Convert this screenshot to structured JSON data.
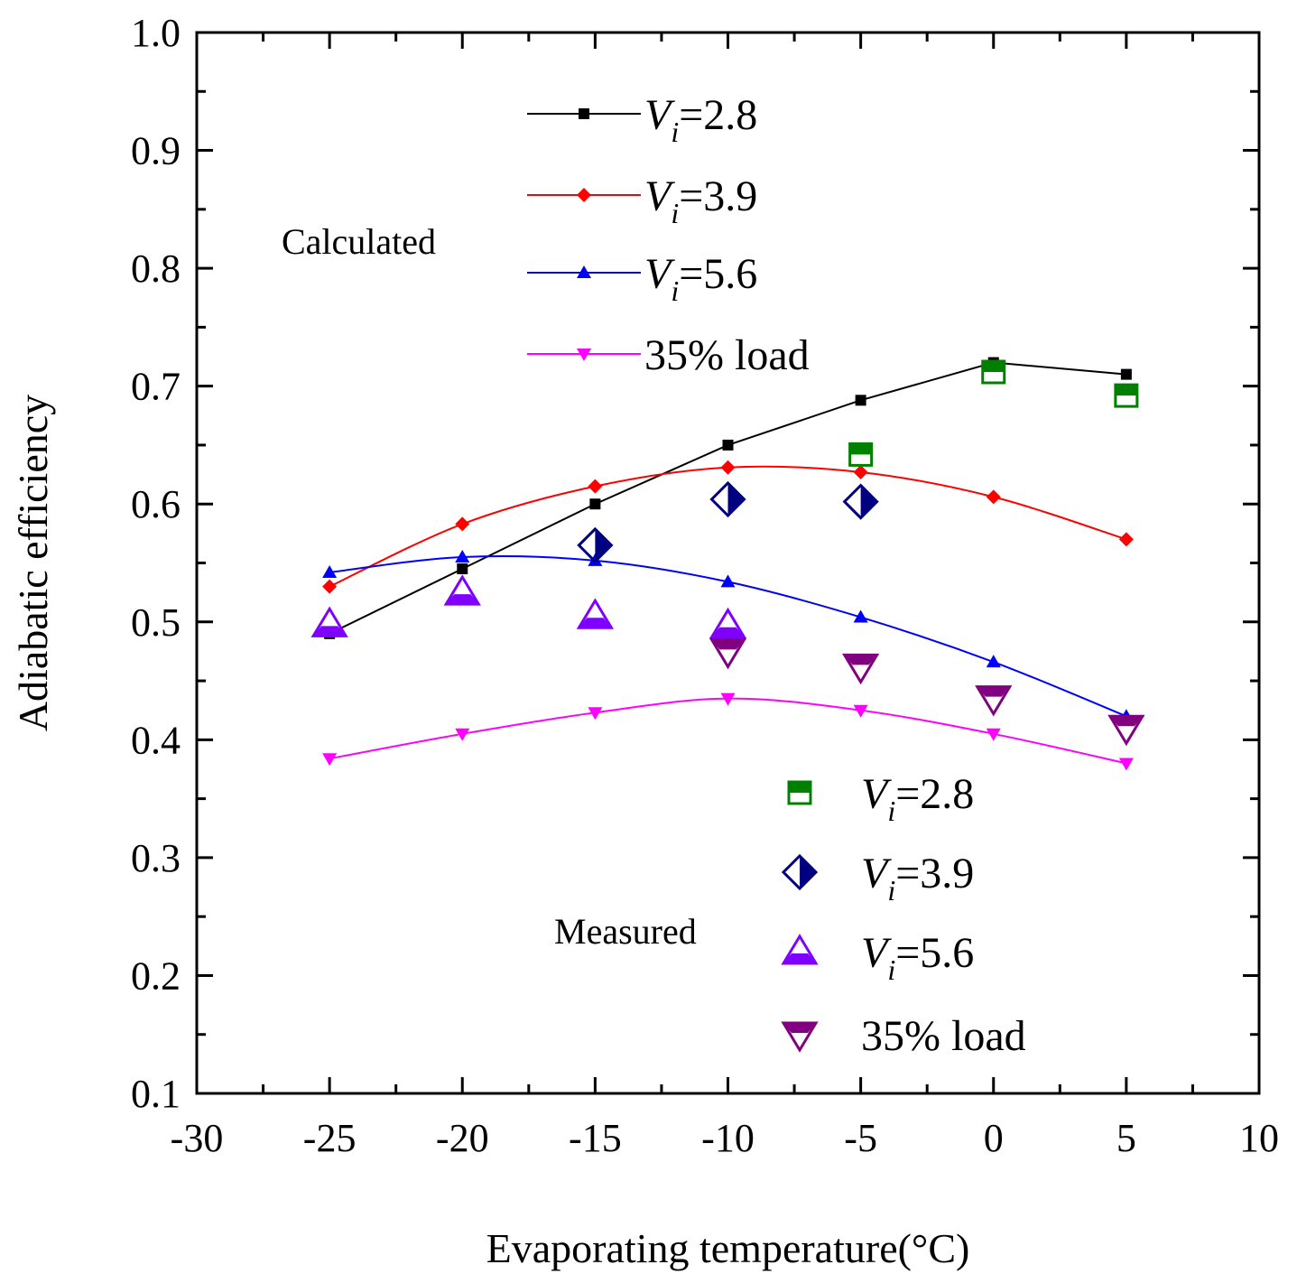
{
  "chart_data": {
    "type": "line",
    "xlabel": "Evaporating temperature(°C)",
    "ylabel": "Adiabatic efficiency",
    "xlim": [
      -30,
      10
    ],
    "ylim": [
      0.1,
      1.0
    ],
    "x_ticks": [
      -30,
      -25,
      -20,
      -15,
      -10,
      -5,
      0,
      5,
      10
    ],
    "y_ticks": [
      0.1,
      0.2,
      0.3,
      0.4,
      0.5,
      0.6,
      0.7,
      0.8,
      0.9,
      1.0
    ],
    "x_tick_labels": [
      "-30",
      "-25",
      "-20",
      "-15",
      "-10",
      "-5",
      "0",
      "5",
      "10"
    ],
    "y_tick_labels": [
      "0.1",
      "0.2",
      "0.3",
      "0.4",
      "0.5",
      "0.6",
      "0.7",
      "0.8",
      "0.9",
      "1.0"
    ],
    "grid": false,
    "annotations": {
      "calculated": "Calculated",
      "measured": "Measured"
    },
    "calculated_series": [
      {
        "name": "Vi=2.8",
        "legend_main": "V",
        "legend_sub": "i",
        "legend_rest": "=2.8",
        "color": "#000000",
        "marker": "square",
        "x": [
          -25,
          -20,
          -15,
          -10,
          -5,
          0,
          5
        ],
        "y": [
          0.49,
          0.545,
          0.6,
          0.65,
          0.688,
          0.72,
          0.71
        ]
      },
      {
        "name": "Vi=3.9",
        "legend_main": "V",
        "legend_sub": "i",
        "legend_rest": "=3.9",
        "color": "#ff0000",
        "marker": "diamond",
        "x": [
          -25,
          -20,
          -15,
          -10,
          -5,
          0,
          5
        ],
        "y": [
          0.53,
          0.583,
          0.615,
          0.631,
          0.627,
          0.606,
          0.57
        ]
      },
      {
        "name": "Vi=5.6",
        "legend_main": "V",
        "legend_sub": "i",
        "legend_rest": "=5.6",
        "color": "#0000ff",
        "marker": "triangle-up",
        "x": [
          -25,
          -20,
          -15,
          -10,
          -5,
          0,
          5
        ],
        "y": [
          0.542,
          0.555,
          0.552,
          0.534,
          0.504,
          0.466,
          0.42
        ]
      },
      {
        "name": "35% load",
        "legend_main": "35% load",
        "legend_sub": "",
        "legend_rest": "",
        "color": "#ff00ff",
        "marker": "triangle-down",
        "x": [
          -25,
          -20,
          -15,
          -10,
          -5,
          0,
          5
        ],
        "y": [
          0.384,
          0.405,
          0.423,
          0.435,
          0.425,
          0.405,
          0.38
        ]
      }
    ],
    "measured_series": [
      {
        "name": "Vi=2.8",
        "legend_main": "V",
        "legend_sub": "i",
        "legend_rest": "=2.8",
        "color": "#008000",
        "marker": "half-square",
        "x": [
          -5,
          0,
          5
        ],
        "y": [
          0.642,
          0.712,
          0.692
        ]
      },
      {
        "name": "Vi=3.9",
        "legend_main": "V",
        "legend_sub": "i",
        "legend_rest": "=3.9",
        "color": "#000080",
        "marker": "half-diamond",
        "x": [
          -15,
          -10,
          -5
        ],
        "y": [
          0.565,
          0.604,
          0.602
        ]
      },
      {
        "name": "Vi=5.6",
        "legend_main": "V",
        "legend_sub": "i",
        "legend_rest": "=5.6",
        "color": "#8000ff",
        "marker": "half-triangle-up",
        "x": [
          -25,
          -20,
          -15,
          -10
        ],
        "y": [
          0.498,
          0.525,
          0.505,
          0.497
        ]
      },
      {
        "name": "35% load",
        "legend_main": "35% load",
        "legend_sub": "",
        "legend_rest": "",
        "color": "#800080",
        "marker": "half-triangle-down",
        "x": [
          -10,
          -5,
          0,
          5
        ],
        "y": [
          0.475,
          0.462,
          0.435,
          0.41
        ]
      }
    ]
  }
}
